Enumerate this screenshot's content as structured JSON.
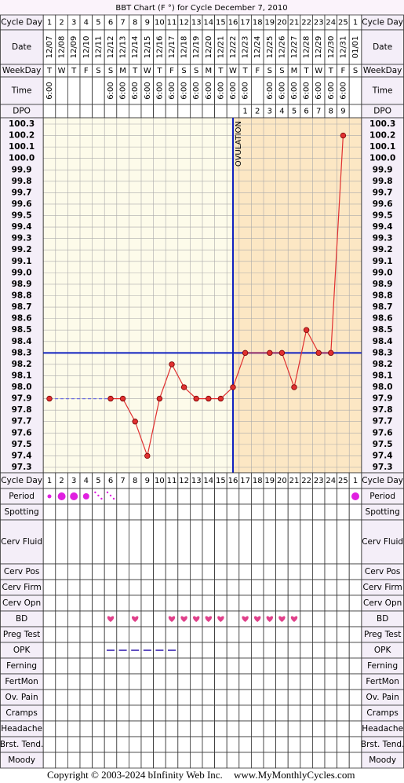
{
  "chart_data": {
    "type": "line",
    "title": "BBT Chart (F °) for Cycle December 7, 2010",
    "row_labels": {
      "cycle_day": "Cycle Day",
      "date": "Date",
      "weekday": "WeekDay",
      "time": "Time",
      "dpo": "DPO"
    },
    "cycle_days": [
      1,
      2,
      3,
      4,
      5,
      6,
      7,
      8,
      9,
      10,
      11,
      12,
      13,
      14,
      15,
      16,
      17,
      18,
      19,
      20,
      21,
      22,
      23,
      24,
      25,
      1
    ],
    "dates": [
      "12/07",
      "12/08",
      "12/09",
      "12/10",
      "12/11",
      "12/12",
      "12/13",
      "12/14",
      "12/15",
      "12/16",
      "12/17",
      "12/18",
      "12/19",
      "12/20",
      "12/21",
      "12/22",
      "12/23",
      "12/24",
      "12/25",
      "12/26",
      "12/27",
      "12/28",
      "12/29",
      "12/30",
      "12/31",
      "01/01"
    ],
    "weekdays": [
      "T",
      "W",
      "T",
      "F",
      "S",
      "S",
      "M",
      "T",
      "W",
      "T",
      "F",
      "S",
      "S",
      "M",
      "T",
      "W",
      "T",
      "F",
      "S",
      "S",
      "M",
      "T",
      "W",
      "T",
      "F",
      "S"
    ],
    "times": [
      "6:00",
      null,
      null,
      null,
      null,
      "6:00",
      "6:00",
      "6:00",
      "6:00",
      "6:00",
      "6:00",
      "6:00",
      "6:00",
      "6:00",
      "6:00",
      "6:00",
      "6:00",
      null,
      "6:00",
      "6:00",
      "6:00",
      "6:00",
      "6:00",
      "6:00",
      "6:00",
      null
    ],
    "dpo": [
      null,
      null,
      null,
      null,
      null,
      null,
      null,
      null,
      null,
      null,
      null,
      null,
      null,
      null,
      null,
      null,
      1,
      2,
      3,
      4,
      5,
      6,
      7,
      8,
      9,
      null
    ],
    "series": [
      {
        "color": "#e03030",
        "values": [
          97.9,
          null,
          null,
          null,
          null,
          97.9,
          97.9,
          97.7,
          97.4,
          97.9,
          98.2,
          98.0,
          97.9,
          97.9,
          97.9,
          98.0,
          98.3,
          null,
          98.3,
          98.3,
          98.0,
          98.5,
          98.3,
          98.3,
          100.2,
          null
        ]
      }
    ],
    "ylim": [
      97.3,
      100.3
    ],
    "yticks": [
      100.3,
      100.2,
      100.1,
      {
        "value": 100,
        "label": "100.0"
      },
      99.9,
      99.8,
      99.7,
      99.6,
      99.5,
      99.4,
      99.3,
      99.2,
      99.1,
      {
        "value": 99,
        "label": "99.0"
      },
      98.9,
      98.8,
      98.7,
      98.6,
      98.5,
      98.4,
      98.3,
      98.2,
      98.1,
      {
        "value": 98,
        "label": "98.0"
      },
      97.9,
      97.8,
      97.7,
      97.6,
      97.5,
      97.4,
      97.3
    ],
    "grid": true,
    "coverline": 98.3,
    "ovulation_day": 16,
    "ovulation_label": "OVULATION",
    "observations": [
      {
        "label": "Period",
        "marks": [
          "light",
          "heavy",
          "heavy",
          "medium",
          "spotting",
          "spotting",
          null,
          null,
          null,
          null,
          null,
          null,
          null,
          null,
          null,
          null,
          null,
          null,
          null,
          null,
          null,
          null,
          null,
          null,
          null,
          "heavy"
        ]
      },
      {
        "label": "Spotting"
      },
      {
        "label": "Cerv Fluid"
      },
      {
        "label": "Cerv Pos"
      },
      {
        "label": "Cerv Firm"
      },
      {
        "label": "Cerv Opn"
      },
      {
        "label": "BD",
        "marks": [
          false,
          false,
          false,
          false,
          false,
          true,
          false,
          true,
          false,
          false,
          true,
          true,
          true,
          true,
          true,
          false,
          true,
          true,
          true,
          true,
          true,
          false,
          false,
          false,
          false,
          false
        ]
      },
      {
        "label": "Preg Test"
      },
      {
        "label": "OPK",
        "marks": [
          false,
          false,
          false,
          false,
          false,
          true,
          true,
          true,
          true,
          true,
          true,
          false,
          false,
          false,
          false,
          false,
          false,
          false,
          false,
          false,
          false,
          false,
          false,
          false,
          false,
          false
        ]
      },
      {
        "label": "Ferning"
      },
      {
        "label": "FertMon"
      },
      {
        "label": "Ov. Pain"
      },
      {
        "label": "Cramps"
      },
      {
        "label": "Headache"
      },
      {
        "label": "Brst. Tend."
      },
      {
        "label": "Moody"
      }
    ],
    "footer": {
      "copyright": "Copyright © 2003-2024 bInfinity Web Inc.",
      "site": "www.MyMonthlyCycles.com"
    }
  }
}
